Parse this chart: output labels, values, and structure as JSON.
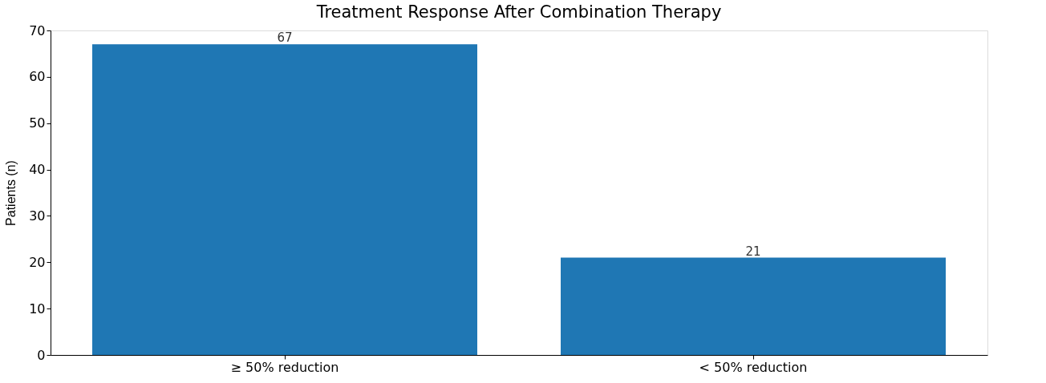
{
  "chart_data": {
    "type": "bar",
    "title": "Treatment Response After Combination Therapy",
    "ylabel": "Patients (n)",
    "categories": [
      "≥ 50% reduction",
      "< 50% reduction"
    ],
    "values": [
      67,
      21
    ],
    "color": "#1f77b4",
    "ylim": [
      0,
      70
    ],
    "yticks": [
      0,
      10,
      20,
      30,
      40,
      50,
      60,
      70
    ],
    "grid": false,
    "data_labels": true
  }
}
